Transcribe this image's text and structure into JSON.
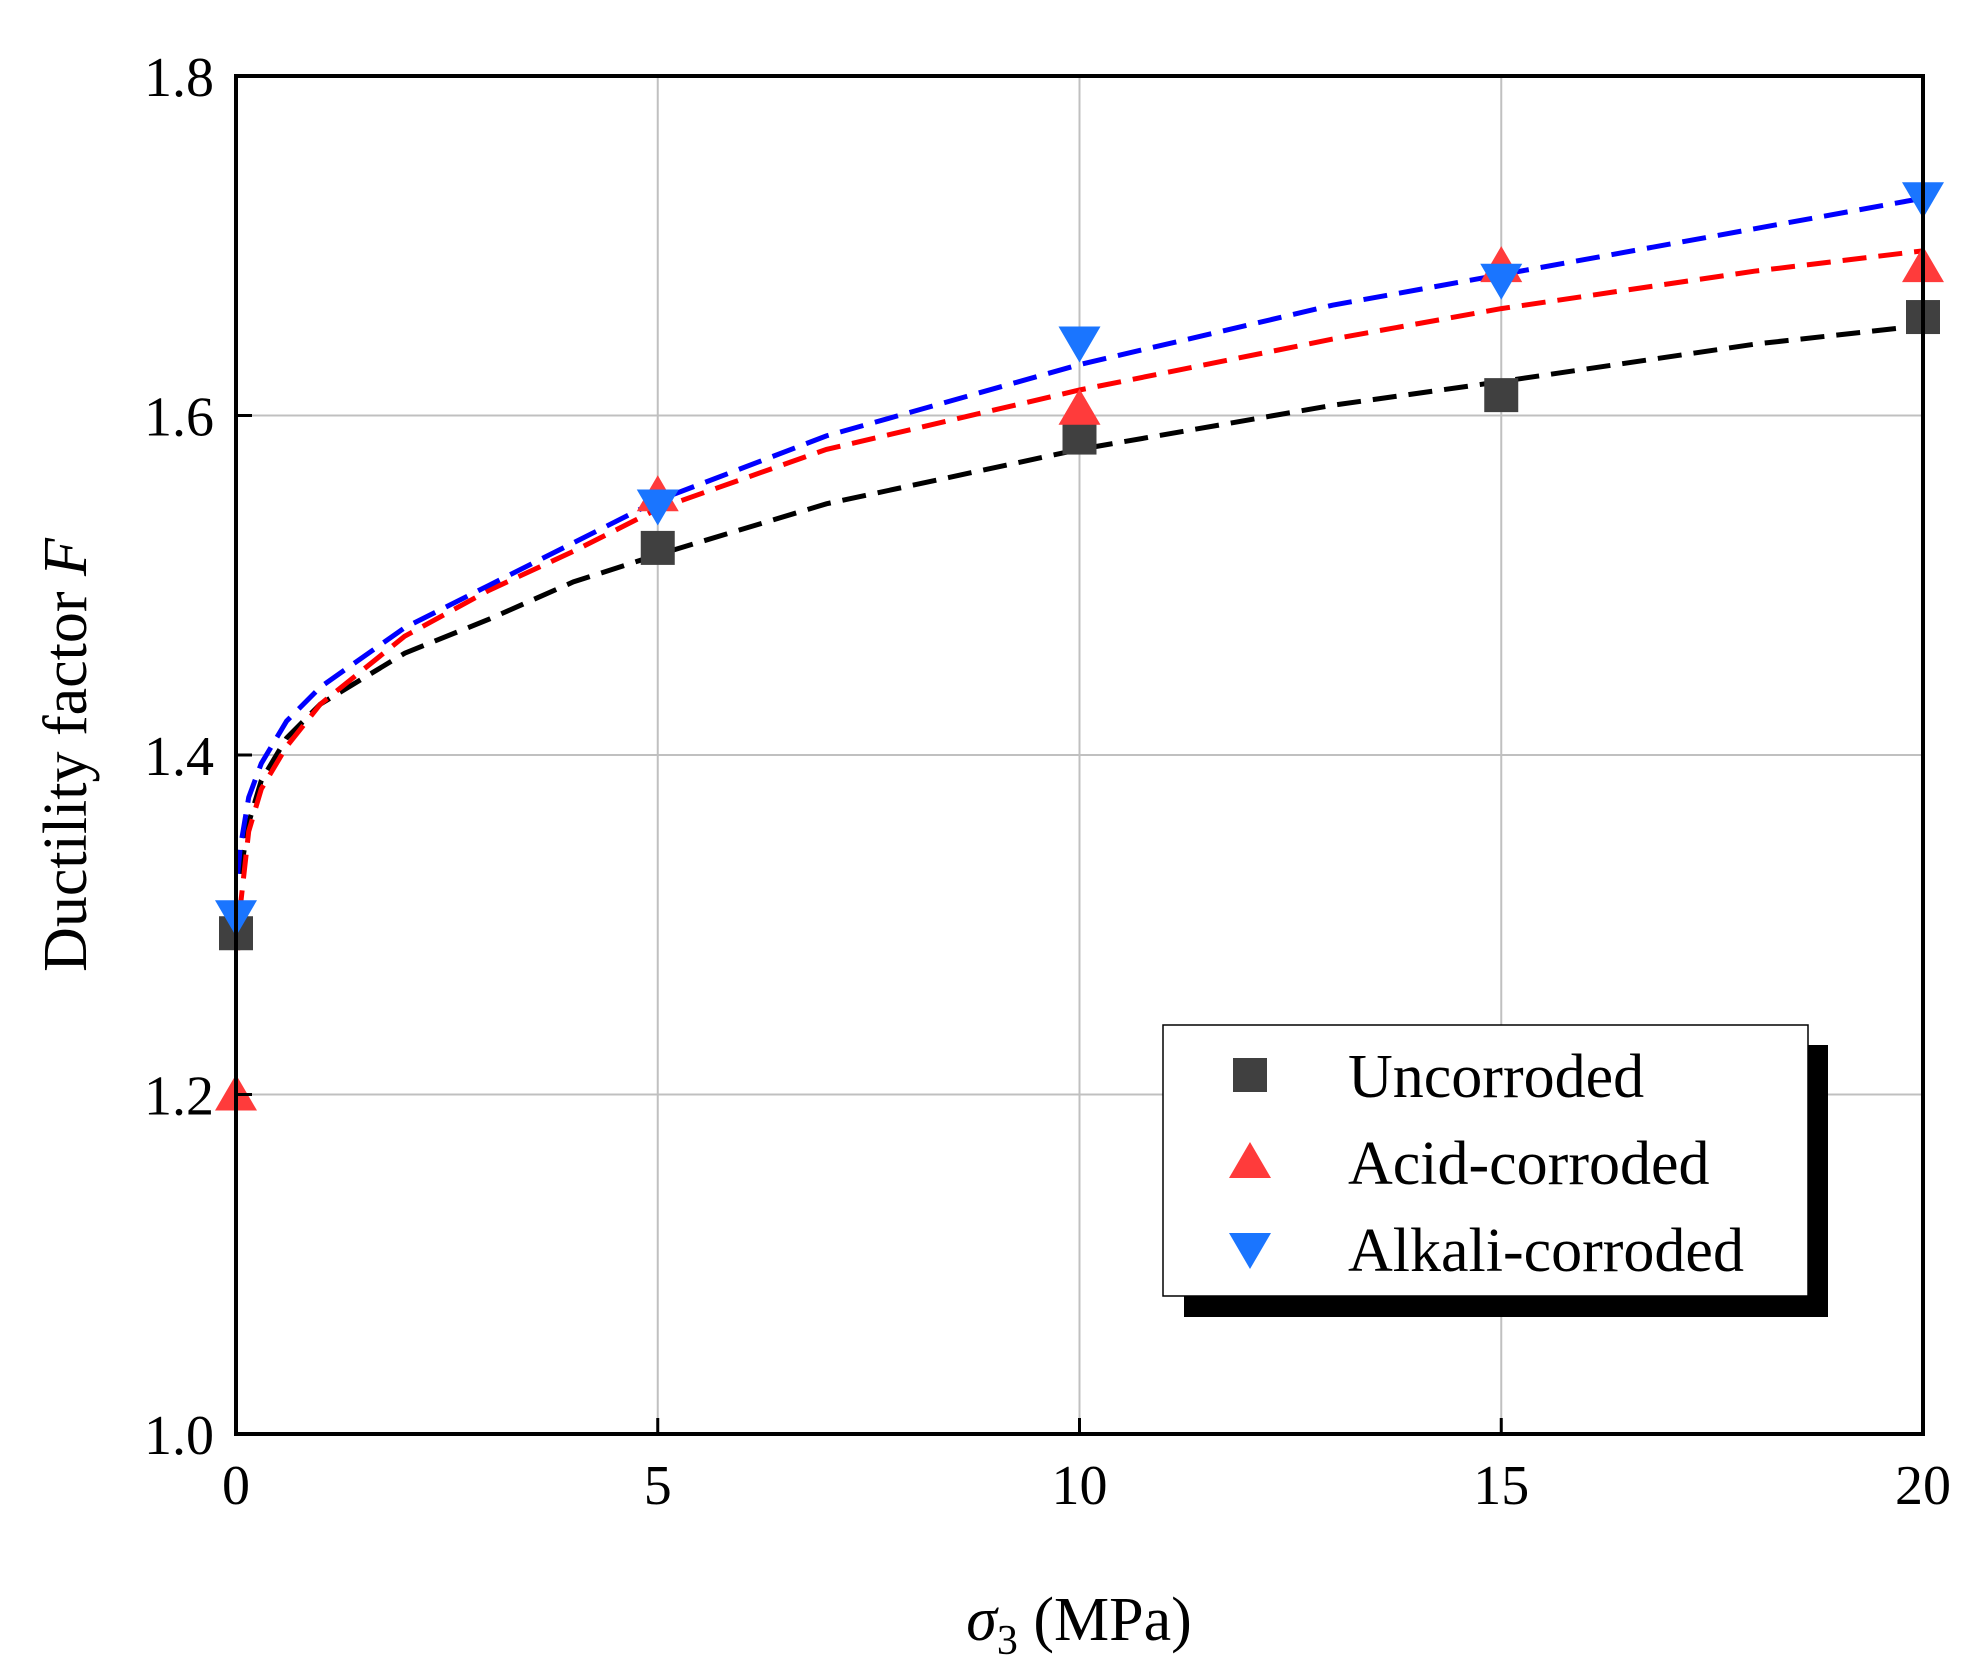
{
  "chart_data": {
    "type": "scatter",
    "title": "",
    "xlabel_symbol": "σ",
    "xlabel_sub": "3",
    "xlabel_rest": " (MPa)",
    "ylabel_text": "Ductility factor ",
    "ylabel_italic": "F",
    "xlim": [
      0,
      20
    ],
    "ylim": [
      1.0,
      1.8
    ],
    "xticks": [
      0,
      5,
      10,
      15,
      20
    ],
    "xtick_labels": [
      "0",
      "5",
      "10",
      "15",
      "20"
    ],
    "yticks": [
      1.0,
      1.2,
      1.4,
      1.6,
      1.8
    ],
    "ytick_labels": [
      "1.0",
      "1.2",
      "1.4",
      "1.6",
      "1.8"
    ],
    "grid": true,
    "legend_position": "bottom-right",
    "x": [
      0,
      5,
      10,
      15,
      20
    ],
    "series": [
      {
        "name": "Uncorroded",
        "marker": "square",
        "color": "#404040",
        "line_color": "#000000",
        "values": [
          1.295,
          1.522,
          1.587,
          1.612,
          1.658
        ],
        "fit_curve": [
          [
            0.05,
            1.33
          ],
          [
            0.15,
            1.36
          ],
          [
            0.3,
            1.385
          ],
          [
            0.6,
            1.41
          ],
          [
            1,
            1.43
          ],
          [
            2,
            1.46
          ],
          [
            3,
            1.48
          ],
          [
            4,
            1.502
          ],
          [
            5,
            1.518
          ],
          [
            7,
            1.548
          ],
          [
            10,
            1.58
          ],
          [
            13,
            1.606
          ],
          [
            15,
            1.62
          ],
          [
            18,
            1.642
          ],
          [
            20,
            1.653
          ]
        ]
      },
      {
        "name": "Acid-corroded",
        "marker": "triangle-up",
        "color": "#ff3b3b",
        "line_color": "#ff0000",
        "values": [
          1.2,
          1.553,
          1.604,
          1.688,
          1.688
        ],
        "fit_curve": [
          [
            0.02,
            1.285
          ],
          [
            0.05,
            1.31
          ],
          [
            0.15,
            1.355
          ],
          [
            0.3,
            1.38
          ],
          [
            0.6,
            1.405
          ],
          [
            1,
            1.43
          ],
          [
            2,
            1.47
          ],
          [
            3,
            1.497
          ],
          [
            4,
            1.52
          ],
          [
            5,
            1.545
          ],
          [
            7,
            1.58
          ],
          [
            10,
            1.615
          ],
          [
            13,
            1.645
          ],
          [
            15,
            1.663
          ],
          [
            18,
            1.685
          ],
          [
            20,
            1.697
          ]
        ]
      },
      {
        "name": "Alkali-corroded",
        "marker": "triangle-down",
        "color": "#1a75ff",
        "line_color": "#0000ff",
        "values": [
          1.305,
          1.547,
          1.643,
          1.68,
          1.728
        ],
        "fit_curve": [
          [
            0.02,
            1.33
          ],
          [
            0.05,
            1.345
          ],
          [
            0.15,
            1.375
          ],
          [
            0.3,
            1.395
          ],
          [
            0.6,
            1.42
          ],
          [
            1,
            1.44
          ],
          [
            2,
            1.475
          ],
          [
            3,
            1.5
          ],
          [
            4,
            1.525
          ],
          [
            5,
            1.55
          ],
          [
            7,
            1.588
          ],
          [
            10,
            1.63
          ],
          [
            13,
            1.665
          ],
          [
            15,
            1.683
          ],
          [
            18,
            1.71
          ],
          [
            20,
            1.728
          ]
        ]
      }
    ]
  }
}
